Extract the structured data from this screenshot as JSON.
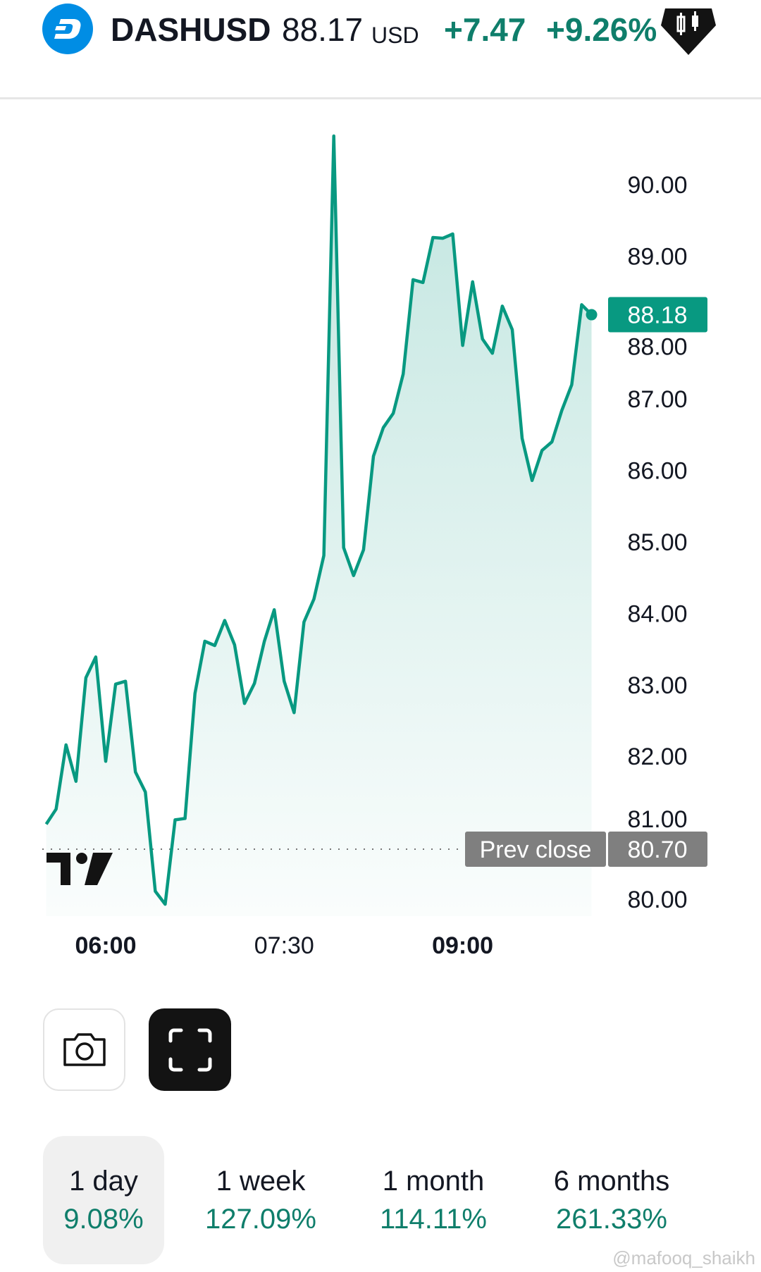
{
  "header": {
    "symbol": "DASHUSD",
    "price": "88.17",
    "currency": "USD",
    "change": "+7.47",
    "change_percent": "+9.26%",
    "logo_icon": "dash-logo-icon",
    "chart_type_icon": "candlestick-icon"
  },
  "colors": {
    "accent": "#089981",
    "logo": "#008de4",
    "label_gray": "#7f7f7f"
  },
  "chart_data": {
    "type": "area",
    "x": [
      "05:30",
      "05:35",
      "05:40",
      "05:45",
      "05:50",
      "05:55",
      "06:00",
      "06:05",
      "06:10",
      "06:15",
      "06:20",
      "06:25",
      "06:30",
      "06:35",
      "06:40",
      "06:45",
      "06:50",
      "06:55",
      "07:00",
      "07:05",
      "07:10",
      "07:15",
      "07:20",
      "07:25",
      "07:30",
      "07:35",
      "07:40",
      "07:45",
      "07:50",
      "07:55",
      "08:00",
      "08:05",
      "08:10",
      "08:15",
      "08:20",
      "08:25",
      "08:30",
      "08:35",
      "08:40",
      "08:45",
      "08:50",
      "08:55",
      "09:00",
      "09:05",
      "09:10",
      "09:15",
      "09:20",
      "09:25",
      "09:30",
      "09:35",
      "09:40",
      "09:45",
      "09:50",
      "09:55",
      "10:00",
      "10:05"
    ],
    "series": [
      {
        "values": [
          81.05,
          81.26,
          82.16,
          81.65,
          83.1,
          83.39,
          81.93,
          83.01,
          83.05,
          81.78,
          81.5,
          80.11,
          79.93,
          81.11,
          81.13,
          82.88,
          83.61,
          83.55,
          83.9,
          83.56,
          82.74,
          83.02,
          83.61,
          84.05,
          83.05,
          82.61,
          83.88,
          84.2,
          84.81,
          90.68,
          84.92,
          84.53,
          84.89,
          86.2,
          86.6,
          86.8,
          87.35,
          88.67,
          88.63,
          89.26,
          89.25,
          89.31,
          87.75,
          88.64,
          87.84,
          87.64,
          88.3,
          87.97,
          86.45,
          85.86,
          86.28,
          86.4,
          86.84,
          87.2,
          88.32,
          88.18
        ]
      }
    ],
    "x_ticks": [
      {
        "label": "06:00",
        "bold": true
      },
      {
        "label": "07:30",
        "bold": false
      },
      {
        "label": "09:00",
        "bold": true
      }
    ],
    "y_ticks": [
      "90.00",
      "89.00",
      "88.00",
      "87.00",
      "86.00",
      "85.00",
      "84.00",
      "83.00",
      "82.00",
      "81.00",
      "80.00"
    ],
    "ylim": [
      79.6,
      91.2
    ],
    "last_price_label": "88.18",
    "prev_close": {
      "label": "Prev close",
      "value": "80.70"
    },
    "grid": false
  },
  "buttons": {
    "snapshot_icon": "camera-icon",
    "fullscreen_icon": "fullscreen-icon"
  },
  "periods": [
    {
      "label": "1 day",
      "value": "9.08%",
      "active": true
    },
    {
      "label": "1 week",
      "value": "127.09%"
    },
    {
      "label": "1 month",
      "value": "114.11%"
    },
    {
      "label": "6 months",
      "value": "261.33%"
    }
  ],
  "watermark": "@mafooq_shaikh"
}
